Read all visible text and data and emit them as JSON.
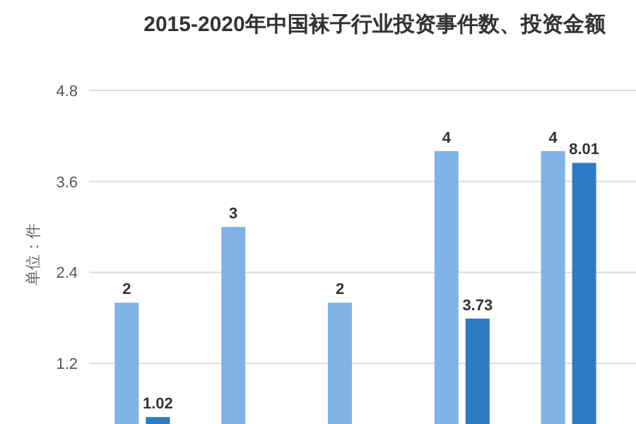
{
  "chart_data": {
    "type": "bar",
    "title": "2015-2020年中国袜子行业投资事件数、投资金额",
    "ylabel": "单位：件",
    "categories": [
      null,
      null,
      null,
      null,
      null
    ],
    "series": [
      {
        "color": "#7fb2e5",
        "values": [
          2,
          3,
          2,
          4,
          4
        ]
      },
      {
        "color": "#2e7bc4",
        "values": [
          1.02,
          null,
          null,
          3.73,
          8.01
        ],
        "axis": "y2"
      }
    ],
    "ylim": [
      0.4,
      4.8
    ],
    "yticks": [
      1.2,
      2.4,
      3.6,
      4.8
    ],
    "y2lim": [
      0.83,
      10
    ],
    "grid": "y",
    "data_labels": true,
    "tick_labels": "y"
  }
}
